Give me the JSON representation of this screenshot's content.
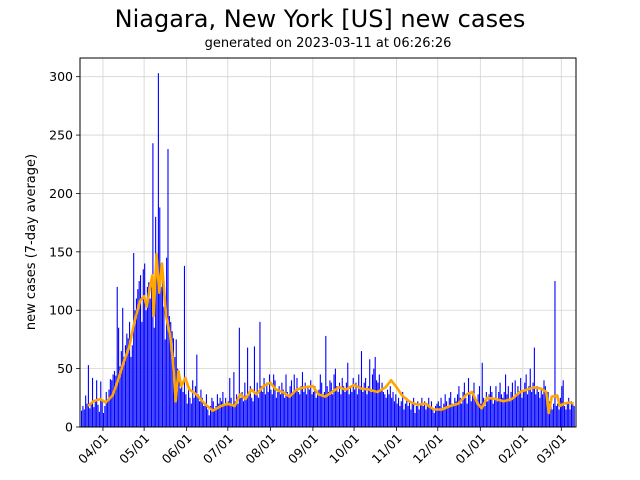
{
  "title": "Niagara, New York [US] new cases",
  "subtitle": "generated on 2023-03-11 at 06:26:26",
  "colors": {
    "bars": "#0000ff",
    "average_line": "#ffa500",
    "grid": "#d3d3d3",
    "axes": "#000000"
  },
  "chart_data": {
    "type": "bar",
    "title": "Niagara, New York [US] new cases",
    "subtitle": "generated on 2023-03-11 at 06:26:26",
    "xlabel": "",
    "ylabel": "new cases (7-day average)",
    "ylim": [
      0,
      316
    ],
    "yticks": [
      0,
      50,
      100,
      150,
      200,
      250,
      300
    ],
    "xticks": [
      "04/01",
      "05/01",
      "06/01",
      "07/01",
      "08/01",
      "09/01",
      "10/01",
      "11/01",
      "12/01",
      "01/01",
      "02/01",
      "03/01"
    ],
    "grid": true,
    "legend": "none",
    "x_start": "2022-03-16",
    "x_end": "2023-03-10",
    "series": [
      {
        "name": "daily new cases",
        "type": "bar",
        "weekly_profile_note": "approximate daily values read from bars, grouped by month",
        "values_by_month": {
          "2022-03": [
            14,
            18,
            15,
            27,
            20,
            53,
            16,
            20,
            42,
            17,
            22,
            40,
            19,
            13,
            39,
            22
          ],
          "2022-04": [
            12,
            18,
            30,
            24,
            32,
            41,
            40,
            45,
            48,
            44,
            120,
            85,
            52,
            65,
            102,
            60,
            70,
            80,
            76,
            90,
            60,
            70,
            149,
            100,
            110,
            118,
            125,
            130,
            90,
            135
          ],
          "2022-05": [
            140,
            100,
            120,
            124,
            110,
            125,
            243,
            85,
            180,
            132,
            303,
            188,
            120,
            140,
            103,
            75,
            145,
            238,
            95,
            90,
            82,
            76,
            60,
            75,
            50,
            40,
            33,
            36,
            30,
            138,
            28
          ],
          "2022-06": [
            20,
            32,
            25,
            20,
            40,
            25,
            35,
            62,
            28,
            22,
            32,
            25,
            18,
            20,
            28,
            15,
            10,
            18,
            25,
            22,
            15,
            18,
            28,
            20,
            25,
            22,
            30,
            18,
            25,
            20
          ],
          "2022-07": [
            22,
            42,
            25,
            18,
            47,
            22,
            28,
            20,
            85,
            25,
            30,
            22,
            38,
            25,
            68,
            30,
            35,
            25,
            22,
            69,
            30,
            38,
            25,
            90,
            35,
            30,
            42,
            28,
            38,
            30,
            45
          ],
          "2022-08": [
            32,
            28,
            45,
            40,
            25,
            30,
            35,
            28,
            38,
            32,
            25,
            45,
            30,
            28,
            35,
            40,
            30,
            45,
            32,
            42,
            30,
            28,
            35,
            47,
            30,
            38,
            28,
            35,
            32,
            40,
            28
          ],
          "2022-09": [
            30,
            35,
            25,
            28,
            32,
            45,
            38,
            28,
            30,
            78,
            35,
            30,
            40,
            38,
            28,
            45,
            50,
            35,
            30,
            38,
            28,
            42,
            35,
            30,
            38,
            55,
            28,
            35,
            30,
            42
          ],
          "2022-10": [
            32,
            38,
            28,
            45,
            35,
            65,
            30,
            38,
            42,
            28,
            35,
            58,
            30,
            45,
            50,
            60,
            40,
            38,
            45,
            32,
            38,
            30,
            28,
            25,
            32,
            28,
            35,
            25,
            30,
            22,
            28
          ],
          "2022-11": [
            20,
            25,
            18,
            22,
            30,
            15,
            20,
            25,
            18,
            22,
            15,
            20,
            25,
            12,
            18,
            22,
            15,
            20,
            25,
            18,
            22,
            15,
            20,
            25,
            18,
            22,
            15,
            12,
            18,
            20
          ],
          "2022-12": [
            22,
            18,
            25,
            15,
            20,
            28,
            22,
            18,
            25,
            30,
            20,
            18,
            25,
            22,
            28,
            35,
            25,
            20,
            30,
            38,
            25,
            20,
            42,
            28,
            22,
            30,
            38,
            25,
            20,
            28,
            35
          ],
          "2023-01": [
            20,
            55,
            25,
            18,
            30,
            22,
            28,
            35,
            30,
            20,
            25,
            35,
            22,
            30,
            38,
            28,
            25,
            30,
            45,
            28,
            35,
            22,
            30,
            38,
            25,
            40,
            28,
            35,
            30,
            42,
            25
          ],
          "2023-02": [
            32,
            38,
            45,
            28,
            35,
            50,
            30,
            38,
            68,
            28,
            35,
            30,
            25,
            32,
            28,
            40,
            35,
            25,
            30,
            22,
            18,
            15,
            20,
            125,
            18,
            20,
            15,
            25,
            22
          ],
          "2023-03": [
            35,
            40,
            18,
            15,
            20,
            25,
            15,
            22,
            20,
            18
          ]
        }
      },
      {
        "name": "7-day average",
        "type": "line",
        "points": [
          [
            "2022-03-21",
            18
          ],
          [
            "2022-03-25",
            22
          ],
          [
            "2022-03-30",
            24
          ],
          [
            "2022-04-03",
            21
          ],
          [
            "2022-04-08",
            27
          ],
          [
            "2022-04-12",
            40
          ],
          [
            "2022-04-16",
            55
          ],
          [
            "2022-04-20",
            68
          ],
          [
            "2022-04-24",
            90
          ],
          [
            "2022-04-28",
            108
          ],
          [
            "2022-05-01",
            112
          ],
          [
            "2022-05-03",
            103
          ],
          [
            "2022-05-05",
            118
          ],
          [
            "2022-05-07",
            130
          ],
          [
            "2022-05-08",
            95
          ],
          [
            "2022-05-10",
            148
          ],
          [
            "2022-05-12",
            115
          ],
          [
            "2022-05-14",
            140
          ],
          [
            "2022-05-17",
            95
          ],
          [
            "2022-05-20",
            78
          ],
          [
            "2022-05-22",
            58
          ],
          [
            "2022-05-24",
            22
          ],
          [
            "2022-05-26",
            48
          ],
          [
            "2022-05-28",
            35
          ],
          [
            "2022-05-31",
            42
          ],
          [
            "2022-06-03",
            32
          ],
          [
            "2022-06-08",
            28
          ],
          [
            "2022-06-14",
            20
          ],
          [
            "2022-06-20",
            14
          ],
          [
            "2022-06-26",
            18
          ],
          [
            "2022-07-01",
            20
          ],
          [
            "2022-07-06",
            18
          ],
          [
            "2022-07-10",
            28
          ],
          [
            "2022-07-14",
            24
          ],
          [
            "2022-07-18",
            32
          ],
          [
            "2022-07-22",
            28
          ],
          [
            "2022-07-27",
            35
          ],
          [
            "2022-08-01",
            38
          ],
          [
            "2022-08-05",
            32
          ],
          [
            "2022-08-10",
            30
          ],
          [
            "2022-08-15",
            26
          ],
          [
            "2022-08-20",
            32
          ],
          [
            "2022-08-26",
            34
          ],
          [
            "2022-09-01",
            35
          ],
          [
            "2022-09-05",
            28
          ],
          [
            "2022-09-10",
            26
          ],
          [
            "2022-09-15",
            30
          ],
          [
            "2022-09-20",
            34
          ],
          [
            "2022-09-25",
            32
          ],
          [
            "2022-10-01",
            36
          ],
          [
            "2022-10-06",
            33
          ],
          [
            "2022-10-12",
            32
          ],
          [
            "2022-10-18",
            30
          ],
          [
            "2022-10-24",
            34
          ],
          [
            "2022-10-28",
            40
          ],
          [
            "2022-11-01",
            34
          ],
          [
            "2022-11-05",
            27
          ],
          [
            "2022-11-10",
            22
          ],
          [
            "2022-11-16",
            19
          ],
          [
            "2022-11-22",
            20
          ],
          [
            "2022-11-28",
            15
          ],
          [
            "2022-12-04",
            15
          ],
          [
            "2022-12-10",
            18
          ],
          [
            "2022-12-16",
            20
          ],
          [
            "2022-12-22",
            28
          ],
          [
            "2022-12-26",
            30
          ],
          [
            "2022-12-30",
            20
          ],
          [
            "2023-01-02",
            16
          ],
          [
            "2023-01-06",
            25
          ],
          [
            "2023-01-12",
            24
          ],
          [
            "2023-01-18",
            22
          ],
          [
            "2023-01-24",
            24
          ],
          [
            "2023-01-30",
            30
          ],
          [
            "2023-02-04",
            32
          ],
          [
            "2023-02-09",
            34
          ],
          [
            "2023-02-14",
            33
          ],
          [
            "2023-02-18",
            30
          ],
          [
            "2023-02-20",
            12
          ],
          [
            "2023-02-22",
            26
          ],
          [
            "2023-02-26",
            27
          ],
          [
            "2023-02-28",
            18
          ],
          [
            "2023-03-03",
            20
          ],
          [
            "2023-03-07",
            21
          ],
          [
            "2023-03-10",
            20
          ]
        ]
      }
    ]
  }
}
